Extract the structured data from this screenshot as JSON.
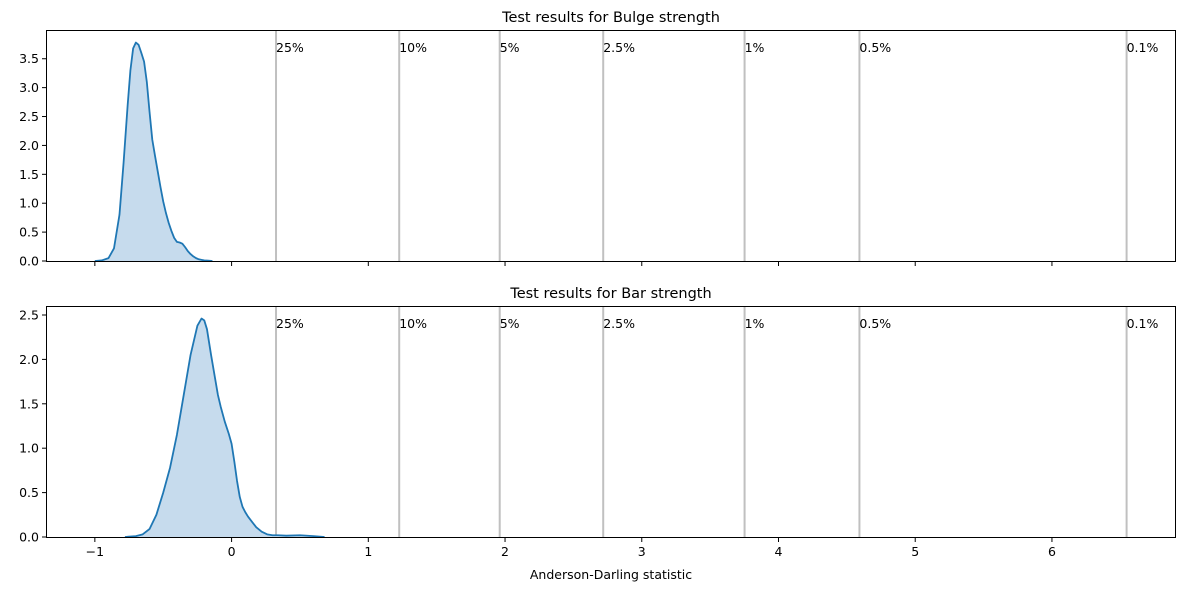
{
  "chart_data": [
    {
      "type": "area",
      "title": "Test results for Bulge strength",
      "xlabel": "",
      "ylabel": "",
      "xlim": [
        -1.35,
        6.9
      ],
      "ylim": [
        0,
        3.98
      ],
      "xticks": [
        -1,
        0,
        1,
        2,
        3,
        4,
        5,
        6
      ],
      "show_xtick_labels": false,
      "yticks": [
        0.0,
        0.5,
        1.0,
        1.5,
        2.0,
        2.5,
        3.0,
        3.5
      ],
      "ytick_labels": [
        "0.0",
        "0.5",
        "1.0",
        "1.5",
        "2.0",
        "2.5",
        "3.0",
        "3.5"
      ],
      "grid": false,
      "colors": {
        "line": "#1f77b4",
        "fill": "#c6dbed",
        "critical_line": "#c0c0c0"
      },
      "critical_values": [
        {
          "label": "25%",
          "x": 0.325
        },
        {
          "label": "10%",
          "x": 1.226
        },
        {
          "label": "5%",
          "x": 1.961
        },
        {
          "label": "2.5%",
          "x": 2.718
        },
        {
          "label": "1%",
          "x": 3.752
        },
        {
          "label": "0.5%",
          "x": 4.592
        },
        {
          "label": "0.1%",
          "x": 6.546
        }
      ],
      "series": [
        {
          "x": [
            -1.0,
            -0.95,
            -0.9,
            -0.86,
            -0.82,
            -0.79,
            -0.76,
            -0.74,
            -0.72,
            -0.7,
            -0.68,
            -0.66,
            -0.64,
            -0.62,
            -0.6,
            -0.58,
            -0.56,
            -0.54,
            -0.52,
            -0.5,
            -0.48,
            -0.46,
            -0.44,
            -0.42,
            -0.4,
            -0.38,
            -0.36,
            -0.34,
            -0.32,
            -0.3,
            -0.28,
            -0.26,
            -0.24,
            -0.22,
            -0.2,
            -0.17,
            -0.14
          ],
          "y": [
            0.0,
            0.01,
            0.05,
            0.22,
            0.8,
            1.7,
            2.7,
            3.3,
            3.68,
            3.78,
            3.74,
            3.6,
            3.45,
            3.1,
            2.58,
            2.1,
            1.82,
            1.55,
            1.28,
            1.03,
            0.83,
            0.66,
            0.52,
            0.4,
            0.33,
            0.32,
            0.3,
            0.24,
            0.17,
            0.12,
            0.08,
            0.05,
            0.03,
            0.02,
            0.01,
            0.005,
            0.0
          ]
        }
      ]
    },
    {
      "type": "area",
      "title": "Test results for Bar strength",
      "xlabel": "Anderson-Darling statistic",
      "ylabel": "",
      "xlim": [
        -1.35,
        6.9
      ],
      "ylim": [
        0,
        2.59
      ],
      "xticks": [
        -1,
        0,
        1,
        2,
        3,
        4,
        5,
        6
      ],
      "xtick_labels": [
        "−1",
        "0",
        "1",
        "2",
        "3",
        "4",
        "5",
        "6"
      ],
      "show_xtick_labels": true,
      "yticks": [
        0.0,
        0.5,
        1.0,
        1.5,
        2.0,
        2.5
      ],
      "ytick_labels": [
        "0.0",
        "0.5",
        "1.0",
        "1.5",
        "2.0",
        "2.5"
      ],
      "grid": false,
      "colors": {
        "line": "#1f77b4",
        "fill": "#c6dbed",
        "critical_line": "#c0c0c0"
      },
      "critical_values": [
        {
          "label": "25%",
          "x": 0.325
        },
        {
          "label": "10%",
          "x": 1.226
        },
        {
          "label": "5%",
          "x": 1.961
        },
        {
          "label": "2.5%",
          "x": 2.718
        },
        {
          "label": "1%",
          "x": 3.752
        },
        {
          "label": "0.5%",
          "x": 4.592
        },
        {
          "label": "0.1%",
          "x": 6.546
        }
      ],
      "series": [
        {
          "x": [
            -0.78,
            -0.7,
            -0.65,
            -0.6,
            -0.55,
            -0.5,
            -0.45,
            -0.4,
            -0.35,
            -0.3,
            -0.25,
            -0.22,
            -0.2,
            -0.18,
            -0.15,
            -0.12,
            -0.1,
            -0.08,
            -0.05,
            -0.02,
            0.0,
            0.02,
            0.04,
            0.06,
            0.08,
            0.1,
            0.12,
            0.15,
            0.18,
            0.22,
            0.26,
            0.3,
            0.34,
            0.4,
            0.5,
            0.6,
            0.68
          ],
          "y": [
            0.0,
            0.01,
            0.03,
            0.09,
            0.25,
            0.5,
            0.78,
            1.15,
            1.6,
            2.05,
            2.38,
            2.46,
            2.44,
            2.34,
            2.05,
            1.78,
            1.6,
            1.47,
            1.3,
            1.16,
            1.05,
            0.85,
            0.63,
            0.45,
            0.34,
            0.28,
            0.23,
            0.17,
            0.11,
            0.06,
            0.03,
            0.02,
            0.02,
            0.015,
            0.02,
            0.01,
            0.0
          ]
        }
      ]
    }
  ]
}
